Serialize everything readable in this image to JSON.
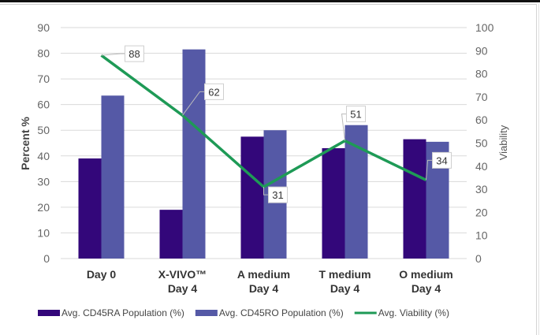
{
  "chart_data": {
    "type": "bar",
    "title": "",
    "categories": [
      [
        "Day 0"
      ],
      [
        "X-VIVO™",
        "Day 4"
      ],
      [
        "A medium",
        "Day 4"
      ],
      [
        "T medium",
        "Day 4"
      ],
      [
        "O medium",
        "Day 4"
      ]
    ],
    "series": [
      {
        "name": "Avg. CD45RA Population (%)",
        "type": "bar",
        "axis": "left",
        "color": "#33077a",
        "values": [
          39,
          19,
          47.5,
          43,
          46.5
        ]
      },
      {
        "name": "Avg. CD45RO Population (%)",
        "type": "bar",
        "axis": "left",
        "color": "#5559a6",
        "values": [
          63.5,
          81.5,
          50,
          52,
          45.5
        ]
      },
      {
        "name": "Avg. Viability (%)",
        "type": "line",
        "axis": "right",
        "color": "#1e9a56",
        "values": [
          88,
          62,
          31,
          51,
          34
        ],
        "data_labels": [
          "88",
          "62",
          "31",
          "51",
          "34"
        ]
      }
    ],
    "ylabel": "Percent %",
    "ylabel_right": "Viability",
    "xlabel": "",
    "ylim": [
      0,
      90
    ],
    "yticks": [
      "0",
      "10",
      "20",
      "30",
      "40",
      "50",
      "60",
      "70",
      "80",
      "90"
    ],
    "ylim_right": [
      0,
      100
    ],
    "yticks_right": [
      "0",
      "10",
      "20",
      "30",
      "40",
      "50",
      "60",
      "70",
      "80",
      "90",
      "100"
    ],
    "grid": true,
    "legend_position": "bottom"
  }
}
